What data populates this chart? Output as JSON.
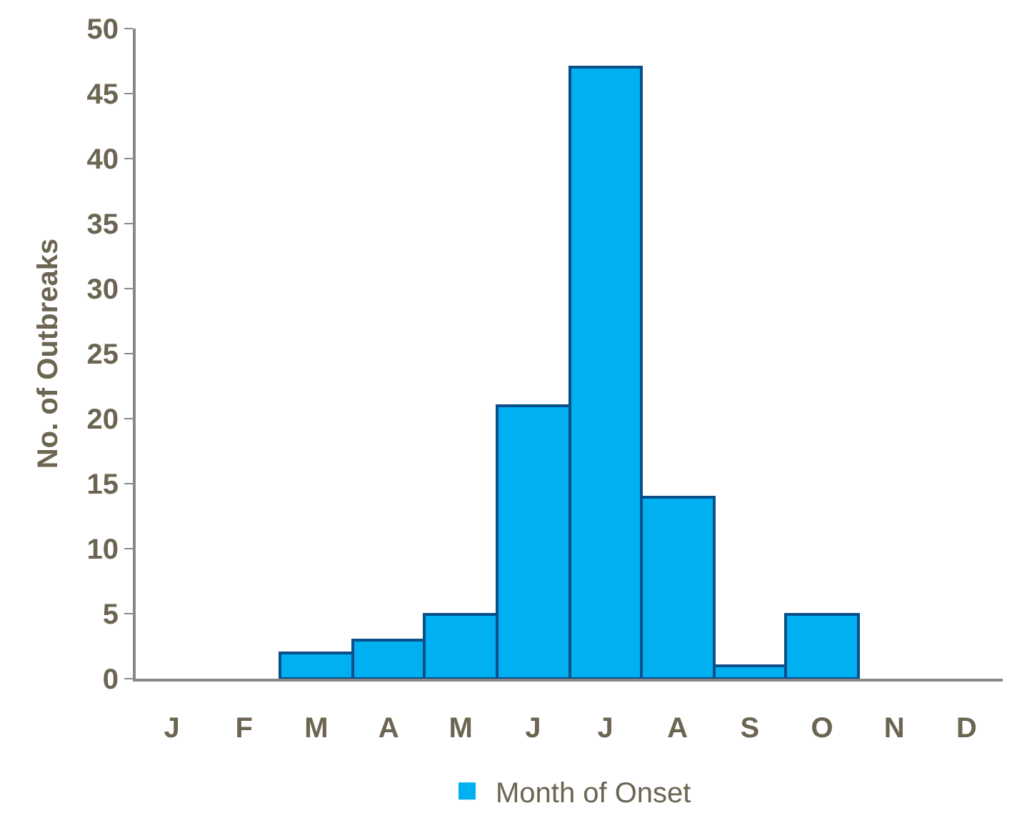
{
  "chart_data": {
    "type": "bar",
    "ylabel": "No. of Outbreaks",
    "categories": [
      "J",
      "F",
      "M",
      "A",
      "M",
      "J",
      "J",
      "A",
      "S",
      "O",
      "N",
      "D"
    ],
    "series": [
      {
        "name": "Month of Onset",
        "color": "#00b0f0",
        "values": [
          0,
          0,
          2,
          3,
          5,
          21,
          47,
          14,
          1,
          5,
          0,
          0
        ]
      }
    ],
    "ylim": [
      0,
      50
    ],
    "yticks": [
      0,
      5,
      10,
      15,
      20,
      25,
      30,
      35,
      40,
      45,
      50
    ],
    "legend": "bottom"
  }
}
